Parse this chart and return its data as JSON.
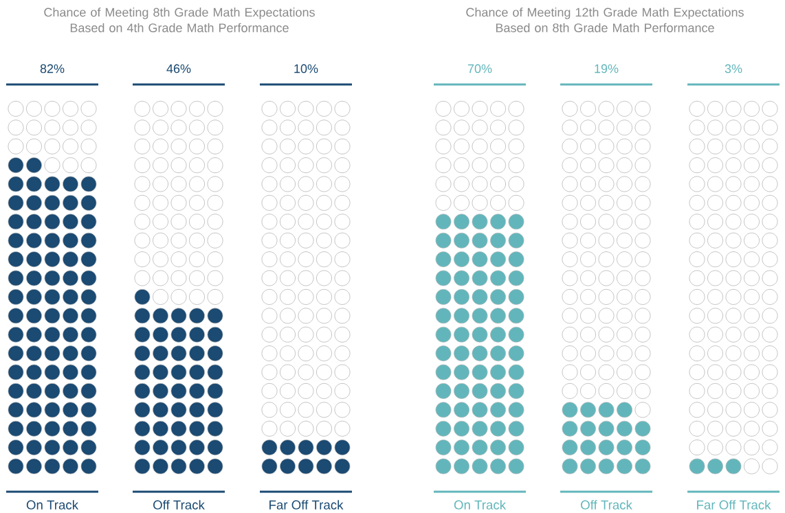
{
  "chart_data": [
    {
      "type": "other",
      "title": "Chance of Meeting 8th Grade Math Expectations Based on 4th Grade Math Performance",
      "categories": [
        "On Track",
        "Off Track",
        "Far Off Track"
      ],
      "values": [
        82,
        46,
        10
      ],
      "value_labels": [
        "82%",
        "46%",
        "10%"
      ],
      "color": "#1b4a72"
    },
    {
      "type": "other",
      "title": "Chance of Meeting 12th Grade Math Expectations Based on 8th Grade Math Performance",
      "categories": [
        "On Track",
        "Off Track",
        "Far Off Track"
      ],
      "values": [
        70,
        19,
        3
      ],
      "value_labels": [
        "70%",
        "19%",
        "3%"
      ],
      "color": "#62b6bb"
    }
  ]
}
